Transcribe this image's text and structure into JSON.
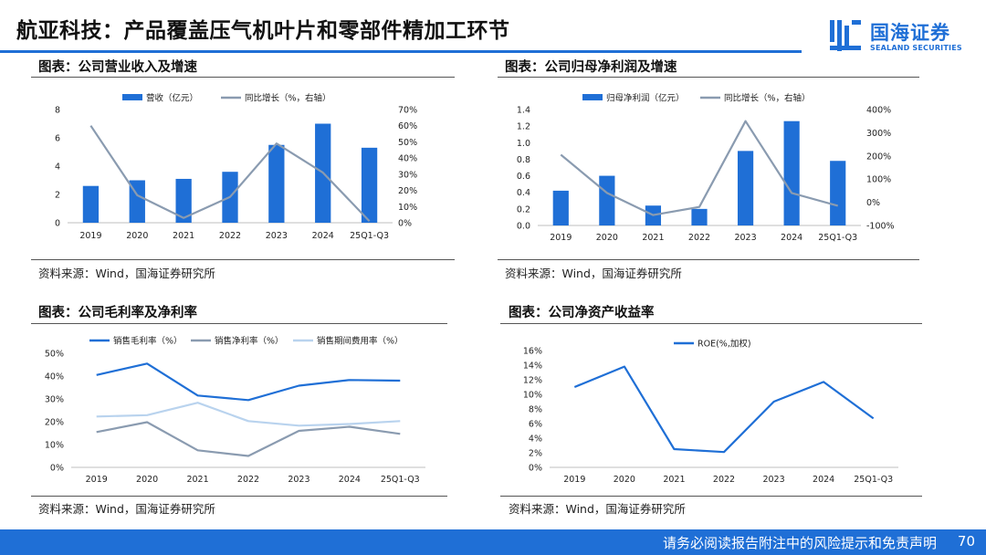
{
  "page": {
    "title": "航亚科技：产品覆盖压气机叶片和零部件精加工环节",
    "logo": {
      "name": "国海证券",
      "en": "SEALAND SECURITIES"
    },
    "footer": {
      "disclaimer": "请务必阅读报告附注中的风险提示和免责声明",
      "page_number": "70"
    }
  },
  "panels": {
    "revenue": {
      "title": "图表：公司营业收入及增速",
      "source": "资料来源：Wind，国海证券研究所"
    },
    "net_profit": {
      "title": "图表：公司归母净利润及增速",
      "source": "资料来源：Wind，国海证券研究所"
    },
    "margin": {
      "title": "图表：公司毛利率及净利率",
      "source": "资料来源：Wind，国海证券研究所"
    },
    "roe": {
      "title": "图表：公司净资产收益率",
      "source": "资料来源：Wind，国海证券研究所"
    }
  },
  "colors": {
    "accent": "#1f6fd6",
    "grey_line": "#8a9bb0",
    "light_blue": "#b9d3ee"
  },
  "chart_data": [
    {
      "id": "revenue",
      "type": "bar",
      "categories": [
        "2019",
        "2020",
        "2021",
        "2022",
        "2023",
        "2024",
        "25Q1-Q3"
      ],
      "series": [
        {
          "name": "营收（亿元）",
          "kind": "bar",
          "axis": "left",
          "values": [
            2.6,
            3.0,
            3.1,
            3.6,
            5.5,
            7.0,
            5.3
          ]
        },
        {
          "name": "同比增长（%，右轴）",
          "kind": "line",
          "axis": "right",
          "values": [
            60,
            17,
            3,
            16,
            49,
            31,
            1
          ]
        }
      ],
      "ylim": [
        0,
        8
      ],
      "yticks": [
        "0",
        "2",
        "4",
        "6",
        "8"
      ],
      "y2lim": [
        0,
        70
      ],
      "y2ticks": [
        "0%",
        "10%",
        "20%",
        "30%",
        "40%",
        "50%",
        "60%",
        "70%"
      ],
      "legend": "top-center"
    },
    {
      "id": "net_profit",
      "type": "bar",
      "categories": [
        "2019",
        "2020",
        "2021",
        "2022",
        "2023",
        "2024",
        "25Q1-Q3"
      ],
      "series": [
        {
          "name": "归母净利润（亿元）",
          "kind": "bar",
          "axis": "left",
          "values": [
            0.42,
            0.6,
            0.24,
            0.2,
            0.9,
            1.26,
            0.78
          ]
        },
        {
          "name": "同比增长（%，右轴）",
          "kind": "line",
          "axis": "right",
          "values": [
            205,
            40,
            -55,
            -20,
            350,
            40,
            -15
          ]
        }
      ],
      "ylim": [
        0,
        1.4
      ],
      "yticks": [
        "0.0",
        "0.2",
        "0.4",
        "0.6",
        "0.8",
        "1.0",
        "1.2",
        "1.4"
      ],
      "y2lim": [
        -100,
        400
      ],
      "y2ticks": [
        "-100%",
        "0%",
        "100%",
        "200%",
        "300%",
        "400%"
      ],
      "legend": "top-center"
    },
    {
      "id": "margin",
      "type": "line",
      "categories": [
        "2019",
        "2020",
        "2021",
        "2022",
        "2023",
        "2024",
        "25Q1-Q3"
      ],
      "series": [
        {
          "name": "销售毛利率（%）",
          "color": "#1f6fd6",
          "values": [
            40.5,
            45.5,
            31.5,
            29.5,
            35.8,
            38.3,
            38.0
          ]
        },
        {
          "name": "销售净利率（%）",
          "color": "#8a9bb0",
          "values": [
            15.5,
            19.8,
            7.5,
            5.0,
            16.0,
            17.8,
            14.7
          ]
        },
        {
          "name": "销售期间费用率（%）",
          "color": "#b9d3ee",
          "values": [
            22.3,
            22.9,
            28.3,
            20.3,
            18.3,
            19.0,
            20.3
          ]
        }
      ],
      "ylim": [
        0,
        50
      ],
      "yticks": [
        "0%",
        "10%",
        "20%",
        "30%",
        "40%",
        "50%"
      ],
      "legend": "top-center"
    },
    {
      "id": "roe",
      "type": "line",
      "categories": [
        "2019",
        "2020",
        "2021",
        "2022",
        "2023",
        "2024",
        "25Q1-Q3"
      ],
      "series": [
        {
          "name": "ROE(%,加权)",
          "color": "#1f6fd6",
          "values": [
            11.0,
            13.8,
            2.5,
            2.1,
            9.0,
            11.7,
            6.7
          ]
        }
      ],
      "ylim": [
        0,
        16
      ],
      "yticks": [
        "0%",
        "2%",
        "4%",
        "6%",
        "8%",
        "10%",
        "12%",
        "14%",
        "16%"
      ],
      "legend": "top-center"
    }
  ]
}
